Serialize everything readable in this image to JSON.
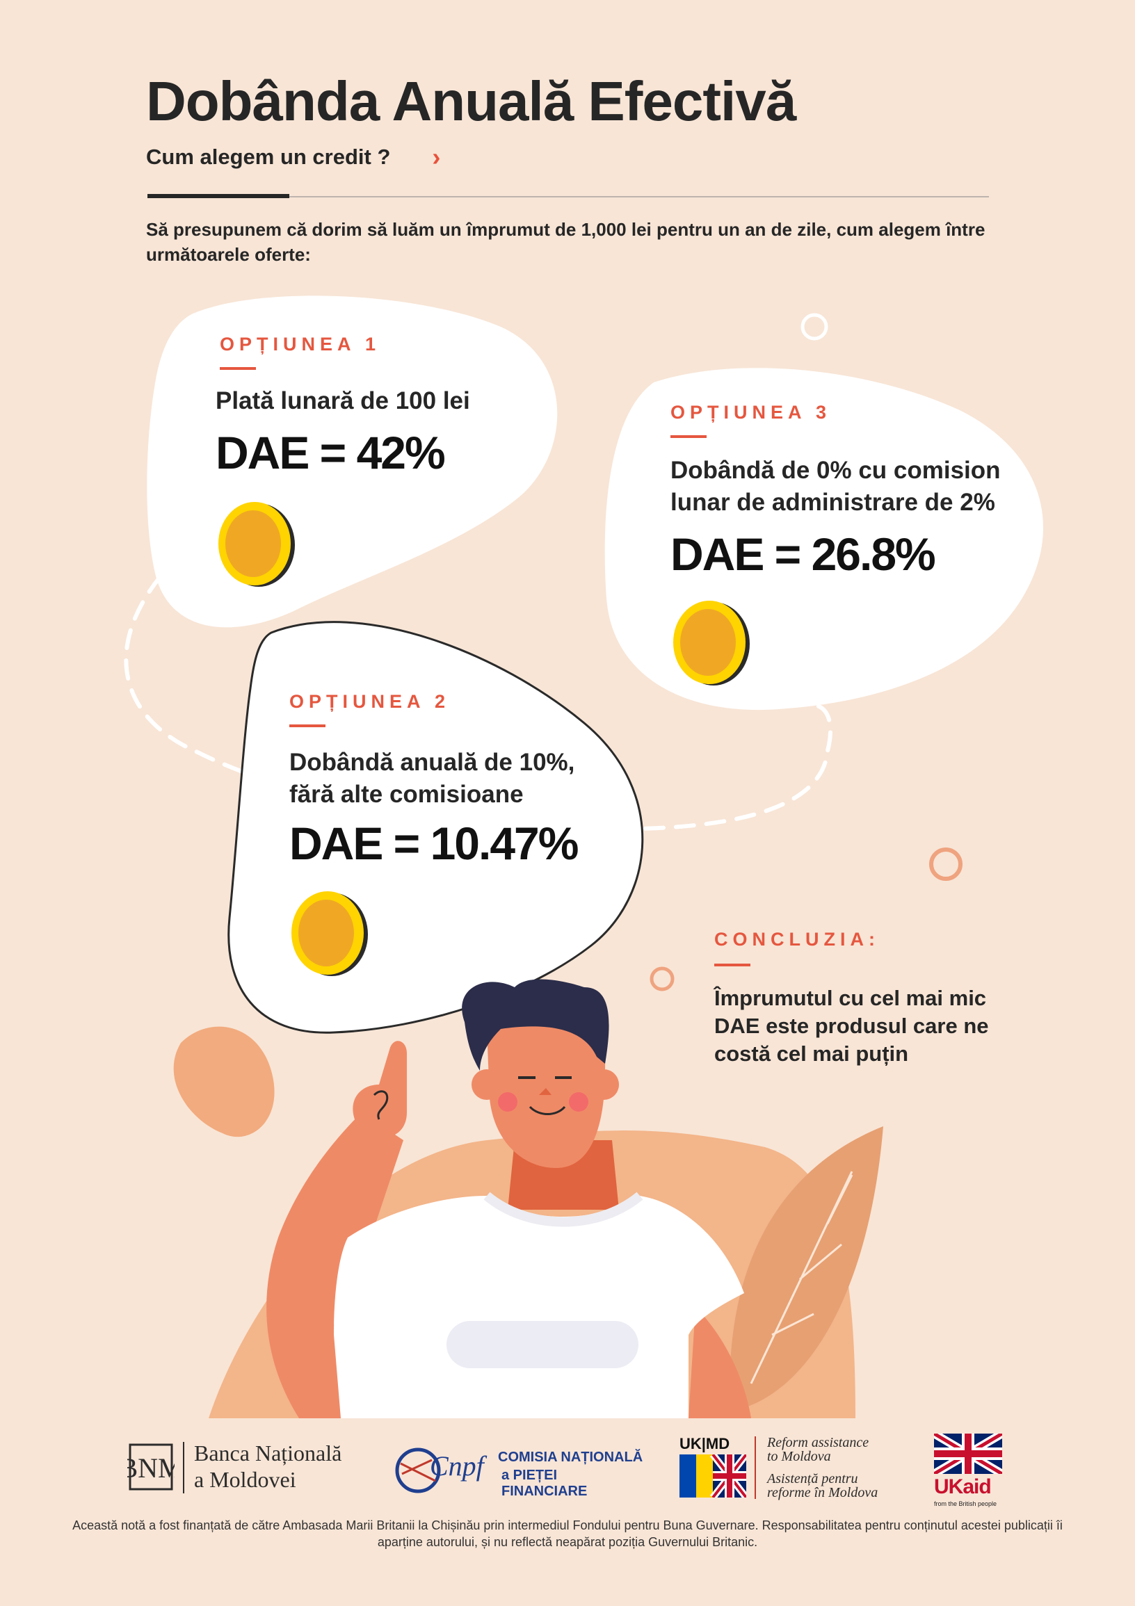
{
  "header": {
    "title": "Dobânda Anuală Efectivă",
    "subtitle": "Cum alegem un credit ?",
    "chevron_icon": "chevron-right-icon"
  },
  "intro": "Să presupunem că dorim să luăm un împrumut de 1,000 lei pentru un an de zile, cum alegem între următoarele oferte:",
  "options": [
    {
      "label": "OPȚIUNEA 1",
      "desc_lines": [
        "Plată lunară de 100 lei"
      ],
      "dae": "DAE = 42%"
    },
    {
      "label": "OPȚIUNEA 2",
      "desc_lines": [
        "Dobândă anuală de 10%,",
        "fără alte comisioane"
      ],
      "dae": "DAE = 10.47%"
    },
    {
      "label": "OPȚIUNEA 3",
      "desc_lines": [
        "Dobândă de 0% cu comision",
        "lunar de administrare de 2%"
      ],
      "dae": "DAE = 26.8%"
    }
  ],
  "conclusion": {
    "label": "CONCLUZIA:",
    "lines": [
      "Împrumutul cu cel mai mic",
      "DAE este produsul care ne",
      "costă cel mai puțin"
    ]
  },
  "logos": {
    "bnm_line1": "Banca Națională",
    "bnm_line2": "a Moldovei",
    "bnm_monogram": "BNM",
    "cnpf_mark": "Cnpf",
    "cnpf_line1": "COMISIA NAȚIONALĂ",
    "cnpf_line2": "a PIEȚEI FINANCIARE",
    "ukmd_mark": "UK|MD",
    "ukmd_line1": "Reform assistance",
    "ukmd_line2": "to Moldova",
    "ukmd_line3": "Asistență pentru",
    "ukmd_line4": "reforme în Moldova",
    "ukaid_mark": "UKaid",
    "ukaid_tag": "from the British people"
  },
  "footer": "Această notă a fost finanțată de către Ambasada Marii Britanii la Chișinău prin intermediul Fondului pentru Buna Guvernare. Responsabilitatea pentru conținutul acestei publicații îi aparține autorului, și nu reflectă neapărat poziția Guvernului Britanic.",
  "colors": {
    "background": "#f8e5d6",
    "accent": "#e5573f",
    "coin": "#f0a824",
    "coin_rim": "#ffd400",
    "skin": "#ef8a66",
    "hair": "#2b2d4a"
  }
}
